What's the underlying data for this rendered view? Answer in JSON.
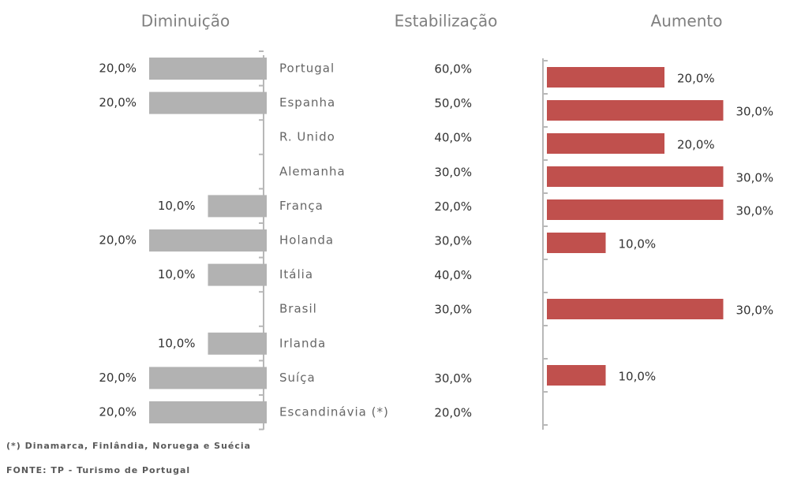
{
  "chart_data": {
    "type": "butterfly",
    "headers": [
      "Diminuição",
      "Estabilização",
      "Aumento"
    ],
    "categories": [
      "Portugal",
      "Espanha",
      "R. Unido",
      "Alemanha",
      "França",
      "Holanda",
      "Itália",
      "Brasil",
      "Irlanda",
      "Suíça",
      "Escandinávia (*)"
    ],
    "series": [
      {
        "name": "Diminuição",
        "color": "#b2b2b2",
        "values": [
          20,
          20,
          null,
          null,
          10,
          20,
          10,
          null,
          10,
          20,
          20
        ],
        "value_labels": [
          "20,0%",
          "20,0%",
          null,
          null,
          "10,0%",
          "20,0%",
          "10,0%",
          null,
          "10,0%",
          "20,0%",
          "20,0%"
        ]
      },
      {
        "name": "Estabilização",
        "values": [
          60,
          50,
          40,
          30,
          20,
          30,
          40,
          30,
          null,
          30,
          20
        ],
        "value_labels": [
          "60,0%",
          "50,0%",
          "40,0%",
          "30,0%",
          "20,0%",
          "30,0%",
          "40,0%",
          "30,0%",
          null,
          "30,0%",
          "20,0%"
        ]
      },
      {
        "name": "Aumento",
        "color": "#c0504d",
        "values": [
          20,
          30,
          20,
          30,
          30,
          10,
          null,
          30,
          null,
          10,
          null
        ],
        "value_labels": [
          "20,0%",
          "30,0%",
          "20,0%",
          "30,0%",
          "30,0%",
          "10,0%",
          null,
          "30,0%",
          null,
          "10,0%",
          null
        ]
      }
    ],
    "notes": [
      "(*) Dinamarca, Finlândia, Noruega e Suécia",
      "FONTE: TP - Turismo de Portugal"
    ]
  }
}
